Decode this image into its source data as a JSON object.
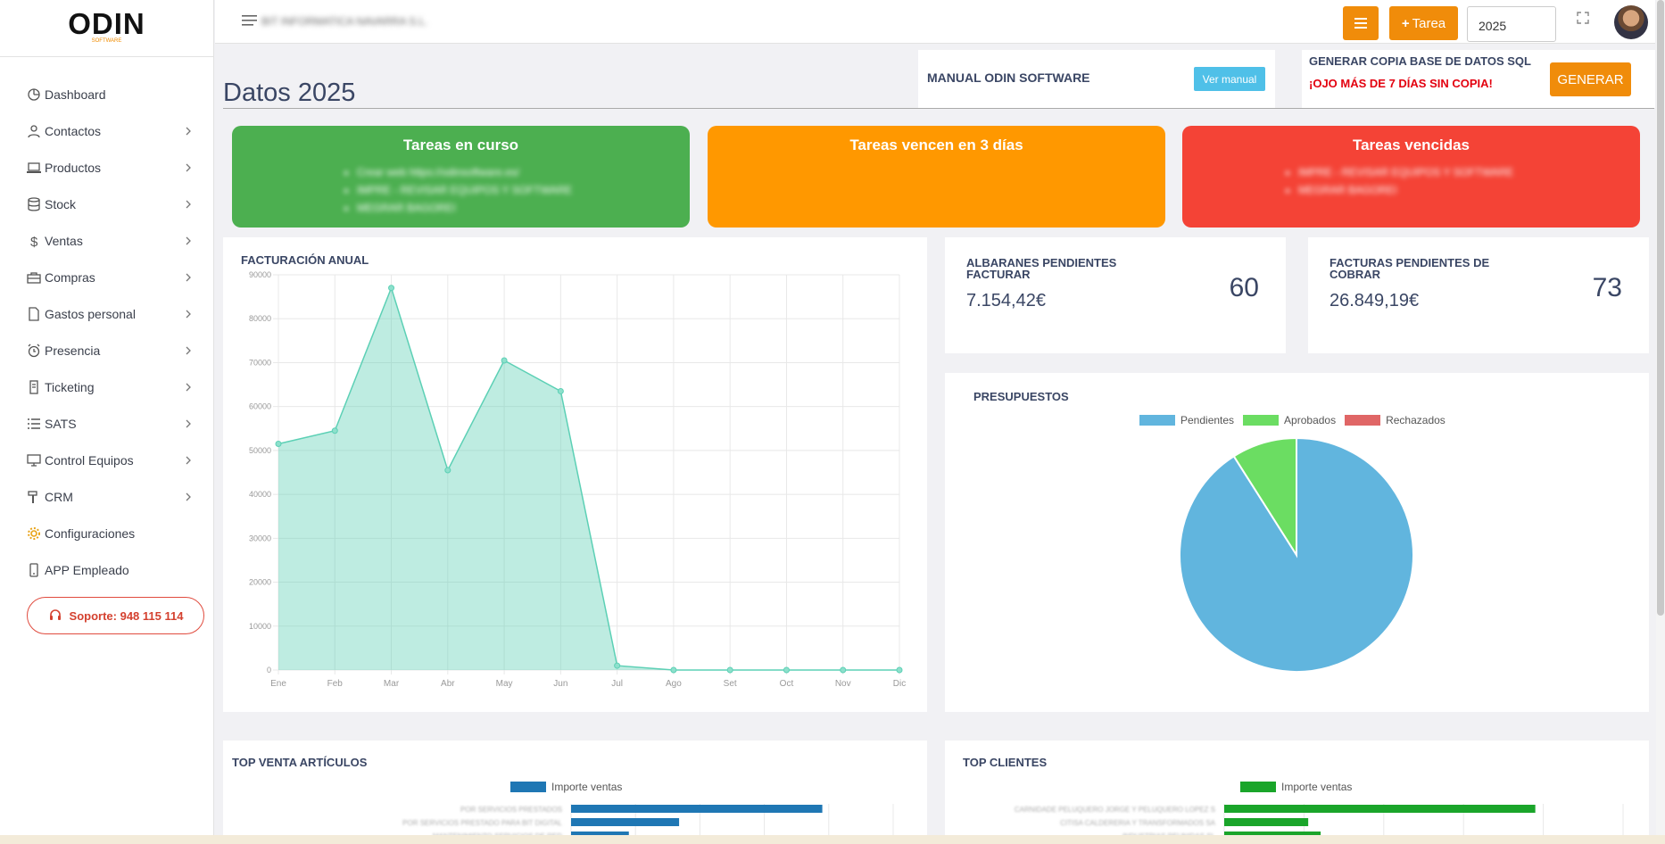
{
  "brand": {
    "name": "ODIN",
    "tagline": "SOFTWARE"
  },
  "topbar": {
    "company": "BIT INFORMATICA NAVARRA S.L.",
    "new_task_label": "Tarea",
    "year_value": "2025"
  },
  "sidebar": {
    "items": [
      {
        "label": "Dashboard",
        "icon": "dashboard-icon",
        "has_submenu": false
      },
      {
        "label": "Contactos",
        "icon": "user-icon",
        "has_submenu": true
      },
      {
        "label": "Productos",
        "icon": "laptop-icon",
        "has_submenu": true
      },
      {
        "label": "Stock",
        "icon": "database-icon",
        "has_submenu": true
      },
      {
        "label": "Ventas",
        "icon": "dollar-icon",
        "has_submenu": true
      },
      {
        "label": "Compras",
        "icon": "briefcase-icon",
        "has_submenu": true
      },
      {
        "label": "Gastos personal",
        "icon": "document-icon",
        "has_submenu": true
      },
      {
        "label": "Presencia",
        "icon": "alarm-clock-icon",
        "has_submenu": true
      },
      {
        "label": "Ticketing",
        "icon": "ticket-icon",
        "has_submenu": true
      },
      {
        "label": "SATS",
        "icon": "list-icon",
        "has_submenu": true
      },
      {
        "label": "Control Equipos",
        "icon": "monitor-icon",
        "has_submenu": true
      },
      {
        "label": "CRM",
        "icon": "hammer-icon",
        "has_submenu": true
      },
      {
        "label": "Configuraciones",
        "icon": "gear-icon",
        "has_submenu": false
      },
      {
        "label": "APP Empleado",
        "icon": "mobile-icon",
        "has_submenu": false
      }
    ],
    "support_label": "Soporte: 948 115 114"
  },
  "page": {
    "title": "Datos 2025"
  },
  "manual": {
    "title": "MANUAL ODIN SOFTWARE",
    "button": "Ver manual"
  },
  "backup": {
    "title": "GENERAR COPIA BASE DE DATOS SQL",
    "warning": "¡OJO MÁS DE 7 DÍAS SIN COPIA!",
    "button": "GENERAR"
  },
  "tasks": {
    "in_progress": {
      "title": "Tareas en curso",
      "items": [
        "Crear web https://odinsoftware.es/",
        "IMPRE - REVISAR EQUIPOS Y SOFTWARE",
        "MEGRAR BAGOREI"
      ],
      "color": "#4caf50"
    },
    "due_soon": {
      "title": "Tareas vencen en 3 días",
      "items": [],
      "color": "#ff9800"
    },
    "overdue": {
      "title": "Tareas vencidas",
      "items": [
        "IMPRE - REVISAR EQUIPOS Y SOFTWARE",
        "MEGRAR BAGOREI"
      ],
      "color": "#f44336"
    }
  },
  "stats": {
    "albaranes": {
      "label": "ALBARANES PENDIENTES FACTURAR",
      "amount": "7.154,42€",
      "count": "60"
    },
    "facturas": {
      "label": "FACTURAS PENDIENTES DE COBRAR",
      "amount": "26.849,19€",
      "count": "73"
    }
  },
  "chart_data": [
    {
      "title": "FACTURACIÓN ANUAL",
      "type": "area",
      "categories": [
        "Ene",
        "Feb",
        "Mar",
        "Abr",
        "May",
        "Jun",
        "Jul",
        "Ago",
        "Set",
        "Oct",
        "Nov",
        "Dic"
      ],
      "values": [
        51500,
        54500,
        87000,
        45500,
        70500,
        63500,
        1000,
        0,
        0,
        0,
        0,
        0
      ],
      "ylim": [
        0,
        90000
      ],
      "yticks": [
        0,
        10000,
        20000,
        30000,
        40000,
        50000,
        60000,
        70000,
        80000,
        90000
      ],
      "color": "#5cd0b5",
      "grid": true
    },
    {
      "title": "PRESUPUESTOS",
      "type": "pie",
      "labels": [
        "Pendientes",
        "Aprobados",
        "Rechazados"
      ],
      "values": [
        91,
        9,
        0
      ],
      "colors": [
        "#61b5de",
        "#6bdd62",
        "#e06666"
      ],
      "legend": "top"
    },
    {
      "title": "TOP VENTA ARTÍCULOS",
      "type": "bar",
      "orientation": "horizontal",
      "series": [
        {
          "name": "Importe ventas",
          "values": [
            100,
            43,
            23
          ]
        }
      ],
      "categories": [
        "POR SERVICIOS PRESTADOS",
        "POR SERVICIOS PRESTADO PARA BIT DIGITAL",
        "MANTENIMIENTO SERVICIOS DE RED"
      ],
      "color": "#1f77b4"
    },
    {
      "title": "TOP CLIENTES",
      "type": "bar",
      "orientation": "horizontal",
      "series": [
        {
          "name": "Importe ventas",
          "values": [
            100,
            27,
            31
          ]
        }
      ],
      "categories": [
        "CARNIDADE PELUQUERO JORGE Y PELUQUERO LOPEZ S",
        "CITISA CALDERERIA Y TRANSFORMADOS SA",
        "INDUSTRIAS REUNIDAS SL"
      ],
      "color": "#1aa52a"
    }
  ]
}
